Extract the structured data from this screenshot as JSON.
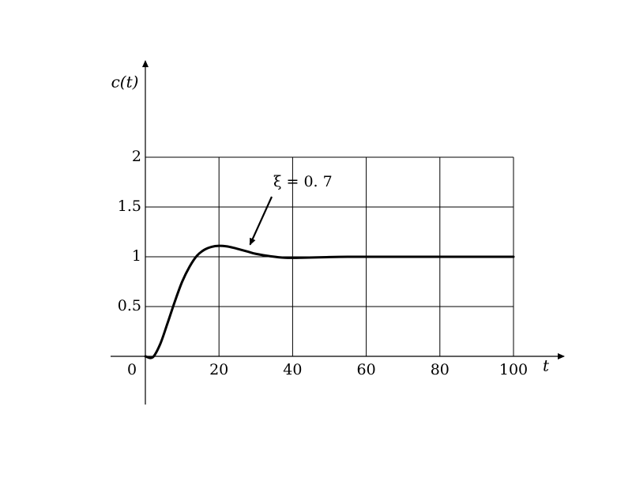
{
  "chart_data": {
    "type": "line",
    "ylabel": "c(t)",
    "xlabel": "t",
    "xlim": [
      0,
      100
    ],
    "ylim": [
      0,
      2
    ],
    "x_ticks": [
      "0",
      "20",
      "40",
      "60",
      "80",
      "100"
    ],
    "y_ticks": [
      "0.5",
      "1",
      "1.5",
      "2"
    ],
    "grid": true,
    "line_color": "#000000",
    "series": [
      {
        "zeta": 0.7,
        "x": [
          0,
          2,
          4,
          6,
          8,
          10,
          12,
          14,
          16,
          18,
          20,
          22,
          24,
          26,
          28,
          30,
          34,
          38,
          42,
          48,
          55,
          65,
          80,
          100
        ],
        "y": [
          0,
          -0.01,
          0.12,
          0.33,
          0.55,
          0.75,
          0.9,
          1.01,
          1.07,
          1.1,
          1.11,
          1.105,
          1.09,
          1.07,
          1.05,
          1.03,
          1.005,
          0.99,
          0.99,
          0.995,
          1.0,
          1.0,
          1.0,
          1.0
        ]
      }
    ],
    "annotation": {
      "text": "ξ = 0. 7",
      "x": 28,
      "y": 1.09
    }
  }
}
